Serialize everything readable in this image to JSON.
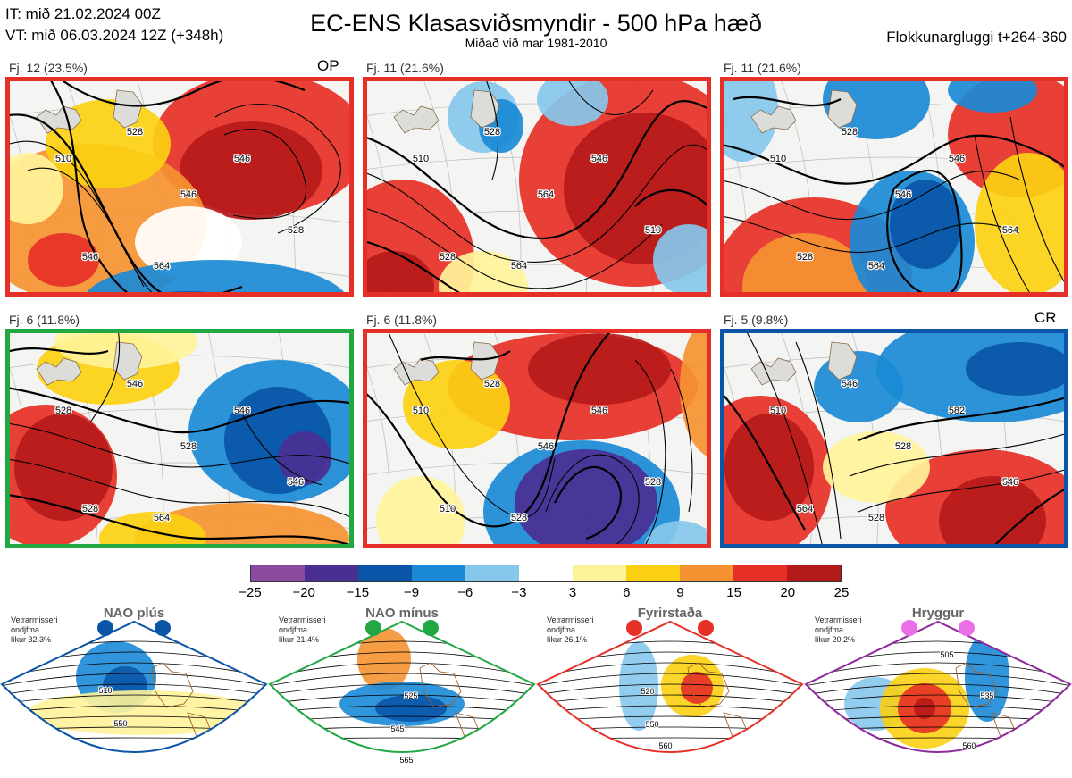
{
  "header": {
    "it_line": "IT: mið 21.02.2024 00Z",
    "vt_line": "VT: mið 06.03.2024 12Z  (+348h)",
    "title": "EC-ENS Klasasviðsmyndir - 500 hPa hæð",
    "subtitle": "Miðað við mar 1981-2010",
    "window": "Flokkunargluggi t+264-360"
  },
  "panels": [
    {
      "label": "Fj. 12 (23.5%)",
      "tag": "OP",
      "border": "#e63027",
      "contours": [
        "510",
        "528",
        "546",
        "528",
        "546",
        "546",
        "564"
      ]
    },
    {
      "label": "Fj. 11 (21.6%)",
      "tag": "",
      "border": "#e63027",
      "contours": [
        "510",
        "528",
        "564",
        "510",
        "528",
        "546",
        "564"
      ]
    },
    {
      "label": "Fj. 11 (21.6%)",
      "tag": "",
      "border": "#e63027",
      "contours": [
        "510",
        "528",
        "546",
        "564",
        "528",
        "546",
        "564"
      ]
    },
    {
      "label": "Fj. 6 (11.8%)",
      "tag": "",
      "border": "#22a843",
      "contours": [
        "528",
        "546",
        "528",
        "546",
        "528",
        "546",
        "564"
      ]
    },
    {
      "label": "Fj. 6 (11.8%)",
      "tag": "",
      "border": "#e63027",
      "contours": [
        "510",
        "528",
        "546",
        "528",
        "510",
        "546",
        "528"
      ]
    },
    {
      "label": "Fj. 5 (9.8%)",
      "tag": "CR",
      "border": "#0a55a8",
      "contours": [
        "510",
        "546",
        "528",
        "546",
        "564",
        "582",
        "528"
      ]
    }
  ],
  "colorbar": {
    "colors": [
      "#8c4a9e",
      "#4a2f92",
      "#0a55a8",
      "#1a8ad6",
      "#86c7ec",
      "#ffffff",
      "#fff39a",
      "#fbd012",
      "#f59331",
      "#e63027",
      "#b51a1a"
    ],
    "ticks": [
      "−25",
      "−20",
      "−15",
      "−9",
      "−6",
      "−3",
      "3",
      "6",
      "9",
      "15",
      "20",
      "25"
    ]
  },
  "regimes": [
    {
      "name": "NAO plús",
      "note1": "Vetrarmisseri",
      "note2": "ondjfma",
      "note3": "líkur 32,3%",
      "color": "#0a55a8",
      "dot": "#0a55a8",
      "labels": [
        "510",
        "550"
      ]
    },
    {
      "name": "NAO mínus",
      "note1": "Vetrarmisseri",
      "note2": "ondjfma",
      "note3": "líkur 21,4%",
      "color": "#22a843",
      "dot": "#22a843",
      "labels": [
        "525",
        "545",
        "565"
      ]
    },
    {
      "name": "Fyrirstaða",
      "note1": "Vetrarmisseri",
      "note2": "ondjfma",
      "note3": "líkur 26,1%",
      "color": "#e63027",
      "dot": "#e63027",
      "labels": [
        "520",
        "550",
        "560"
      ]
    },
    {
      "name": "Hryggur",
      "note1": "Vetrarmisseri",
      "note2": "ondjfma",
      "note3": "líkur 20,2%",
      "color": "#8e2a9c",
      "dot": "#ea6ee8",
      "labels": [
        "505",
        "535",
        "560"
      ]
    }
  ]
}
